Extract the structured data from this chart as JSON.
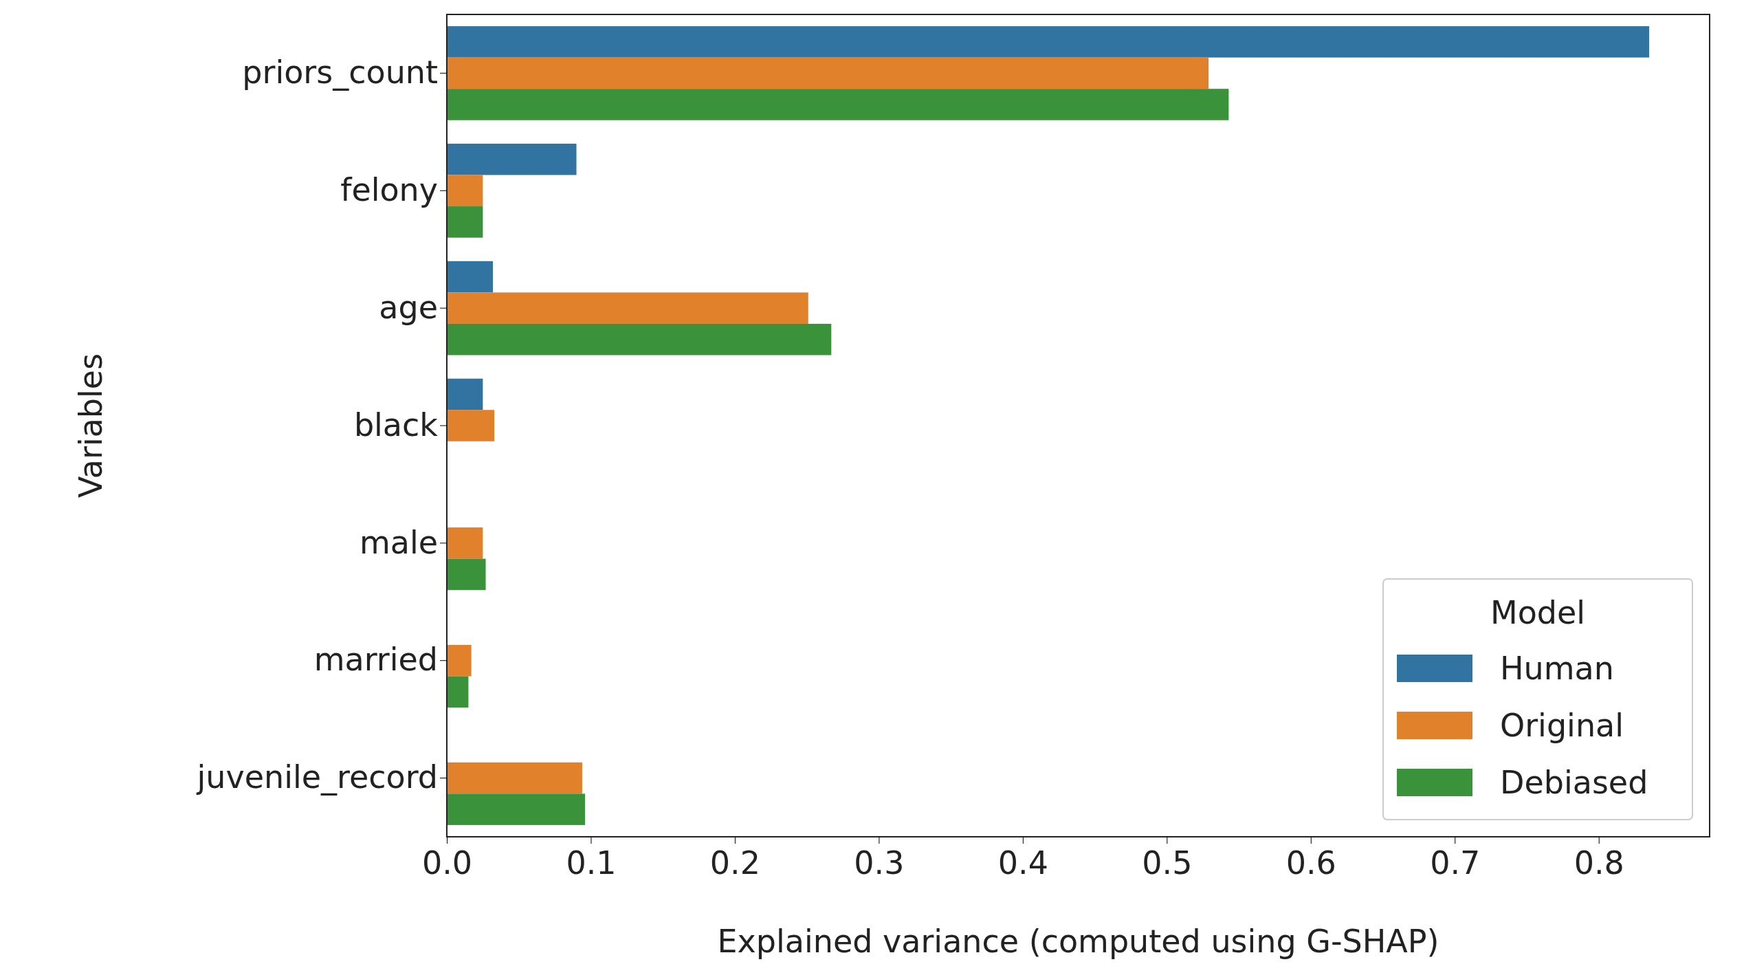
{
  "chart_data": {
    "type": "bar",
    "orientation": "horizontal",
    "xlabel": "Explained variance (computed using G-SHAP)",
    "ylabel": "Variables",
    "legend_title": "Model",
    "legend": "bottom right",
    "grid": false,
    "categories": [
      "priors_count",
      "felony",
      "age",
      "black",
      "male",
      "married",
      "juvenile_record"
    ],
    "xlim": [
      0,
      0.877
    ],
    "xticks": [
      {
        "value": 0,
        "label": "0.0"
      },
      0.1,
      0.2,
      0.3,
      0.4,
      0.5,
      0.6,
      0.7,
      0.8
    ],
    "series": [
      {
        "name": "Human",
        "color": "#3274a1",
        "values": [
          0.835,
          0.09,
          0.032,
          0.025,
          0,
          0,
          0
        ]
      },
      {
        "name": "Original",
        "color": "#e1812c",
        "values": [
          0.529,
          0.025,
          0.251,
          0.033,
          0.025,
          0.017,
          0.094
        ]
      },
      {
        "name": "Debiased",
        "color": "#3a923a",
        "values": [
          0.543,
          0.025,
          0.267,
          null,
          0.027,
          0.015,
          0.096
        ]
      }
    ]
  }
}
